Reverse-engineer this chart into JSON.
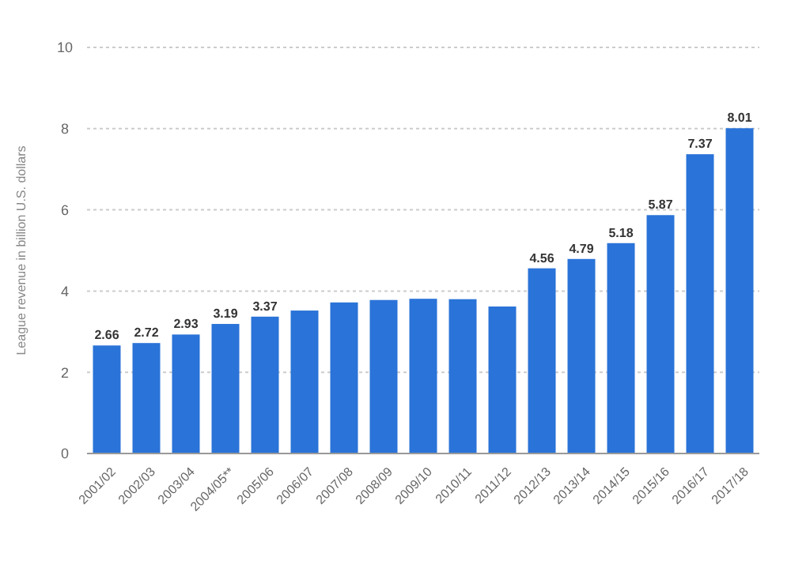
{
  "chart_data": {
    "type": "bar",
    "ylabel": "League revenue in billion U.S. dollars",
    "categories": [
      "2001/02",
      "2002/03",
      "2003/04",
      "2004/05**",
      "2005/06",
      "2006/07",
      "2007/08",
      "2008/09",
      "2009/10",
      "2010/11",
      "2011/12",
      "2012/13",
      "2013/14",
      "2014/15",
      "2015/16",
      "2016/17",
      "2017/18"
    ],
    "values": [
      2.66,
      2.72,
      2.93,
      3.19,
      3.37,
      3.52,
      3.72,
      3.78,
      3.81,
      3.8,
      3.62,
      4.56,
      4.79,
      5.18,
      5.87,
      7.37,
      8.01
    ],
    "value_labels": [
      "2.66",
      "2.72",
      "2.93",
      "3.19",
      "3.37",
      null,
      null,
      null,
      null,
      null,
      null,
      "4.56",
      "4.79",
      "5.18",
      "5.87",
      "7.37",
      "8.01"
    ],
    "color": "#2a73d8",
    "ylim": [
      0,
      10
    ],
    "yticks": [
      0,
      2,
      4,
      6,
      8,
      10
    ],
    "grid": "y"
  }
}
